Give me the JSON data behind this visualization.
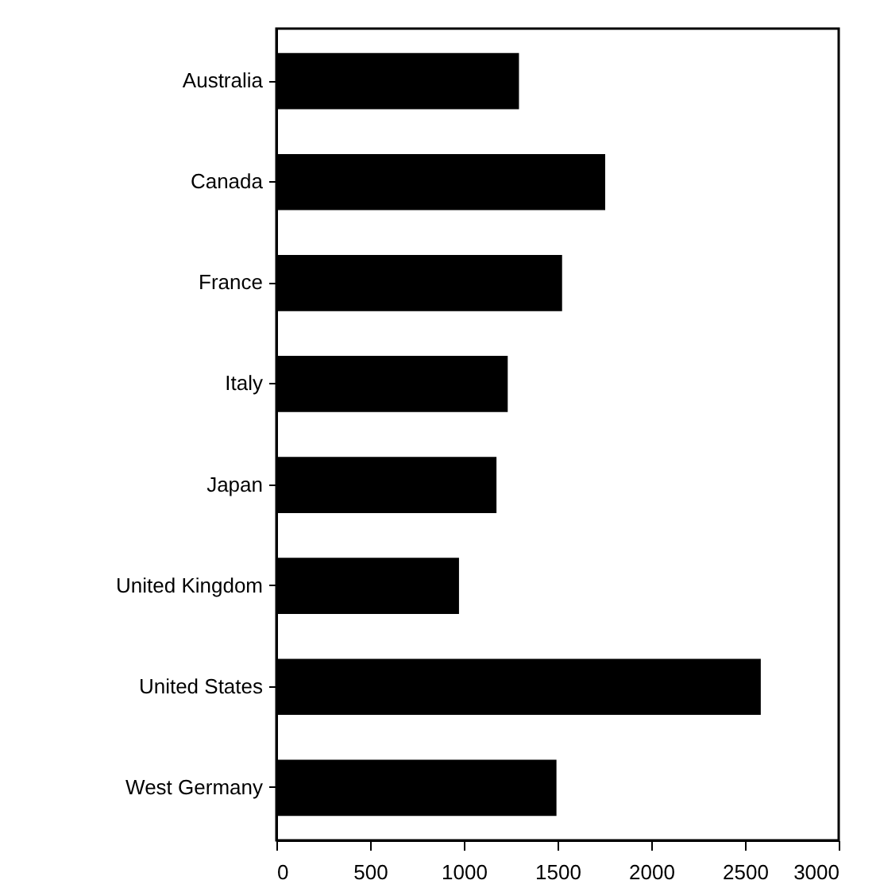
{
  "chart_data": {
    "type": "bar",
    "orientation": "horizontal",
    "categories": [
      "Australia",
      "Canada",
      "France",
      "Italy",
      "Japan",
      "United Kingdom",
      "United States",
      "West Germany"
    ],
    "values": [
      1290,
      1750,
      1520,
      1230,
      1170,
      970,
      2580,
      1490
    ],
    "color": "#000000",
    "xlim": [
      0,
      3000
    ],
    "xticks": [
      0,
      500,
      1000,
      1500,
      2000,
      2500,
      3000
    ],
    "grid": false
  }
}
